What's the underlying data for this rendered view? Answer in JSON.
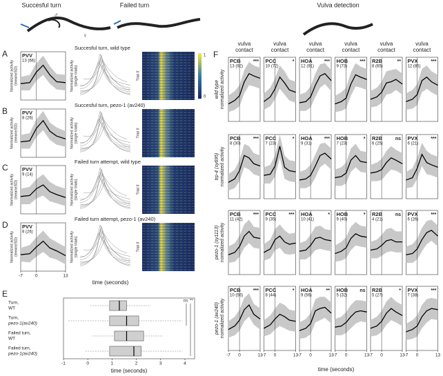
{
  "labels": {
    "header_left1": "Succesful turn",
    "header_left2": "Failed turn",
    "header_right": "Vulva detection",
    "male": "♂",
    "female": "♀",
    "letters": [
      "A",
      "B",
      "C",
      "D",
      "E",
      "F"
    ],
    "row_titles": [
      "Succesful turn, wild type",
      "Succesful turn, pezo-1 (av240)",
      "Failed turn attempt, wild type",
      "Failed turn attempt, pezo-1 (av240)"
    ],
    "ylabel_mean": [
      "Normalized activity",
      "(mean±SD)"
    ],
    "ylabel_single": [
      "Normalized activity",
      "(single trials)"
    ],
    "trial": "Trial #",
    "heat_label": "Normalized activity",
    "colorbar_ticks": [
      1,
      0
    ],
    "time": "time (seconds)",
    "vulva_contact": [
      "vulva",
      "contact"
    ],
    "row_labels": [
      [
        "wild type",
        "normalized activity"
      ],
      [
        "trp-4 (sy695)",
        "normalized activity"
      ],
      [
        "pezo-1 (sy1113)",
        "normalized activity"
      ],
      [
        "pezo-1 (av240)",
        "normalized activity"
      ]
    ]
  },
  "chart_data": [
    {
      "type": "line",
      "neuron": "PVV",
      "n": "13 (66)",
      "x": [
        -7,
        -3,
        0,
        3,
        6,
        9,
        13
      ],
      "values": [
        -0.3,
        -0.2,
        0.9,
        1.6,
        0.6,
        -0.1,
        -0.2
      ],
      "sd": [
        0.7,
        0.8,
        0.9,
        1.0,
        0.9,
        0.8,
        0.8
      ],
      "xlim": [
        -7,
        13
      ],
      "ylim": [
        -2,
        3
      ],
      "vline": 0
    },
    {
      "type": "line",
      "neuron": "PVV",
      "n": "8 (26)",
      "x": [
        -7,
        -3,
        0,
        3,
        6,
        9,
        13
      ],
      "values": [
        -0.4,
        -0.3,
        1.0,
        1.8,
        0.7,
        0.2,
        -0.1
      ],
      "sd": [
        0.7,
        0.8,
        0.9,
        1.0,
        0.9,
        0.9,
        0.8
      ],
      "xlim": [
        -7,
        13
      ],
      "ylim": [
        -2,
        3
      ],
      "vline": 0
    },
    {
      "type": "line",
      "neuron": "PVV",
      "n": "9 (14)",
      "x": [
        -7,
        -3,
        0,
        3,
        6,
        9,
        13
      ],
      "values": [
        -0.2,
        -0.1,
        0.6,
        1.0,
        0.3,
        0.0,
        -0.3
      ],
      "sd": [
        0.8,
        0.9,
        1.0,
        1.1,
        1.0,
        0.9,
        0.9
      ],
      "xlim": [
        -7,
        13
      ],
      "ylim": [
        -2,
        3
      ],
      "vline": 0
    },
    {
      "type": "line",
      "neuron": "PVV",
      "n": "8 (26)",
      "x": [
        -7,
        -3,
        0,
        3,
        6,
        9,
        13
      ],
      "values": [
        -0.3,
        -0.2,
        0.5,
        1.1,
        0.4,
        0.1,
        -0.4
      ],
      "sd": [
        0.7,
        0.9,
        1.0,
        1.1,
        1.0,
        0.9,
        0.9
      ],
      "xlim": [
        -7,
        13
      ],
      "ylim": [
        -2,
        3
      ],
      "vline": 0,
      "xticks": [
        -7,
        0,
        13
      ]
    },
    {
      "type": "line",
      "neuron": "PCB",
      "n": "13 (92)",
      "sig": "***",
      "x": [
        -7,
        -3,
        0,
        3,
        6,
        9,
        13
      ],
      "values": [
        -1.0,
        -0.7,
        -0.3,
        0.9,
        1.6,
        1.4,
        1.2
      ],
      "sd": [
        0.7,
        0.8,
        0.9,
        1.0,
        1.0,
        0.9,
        0.9
      ],
      "xlim": [
        -7,
        13
      ],
      "ylim": [
        -2.5,
        3
      ],
      "vline": 0
    },
    {
      "type": "line",
      "neuron": "PCC",
      "n": "10 (72)",
      "sig": "*",
      "x": [
        -7,
        -3,
        0,
        3,
        6,
        9,
        13
      ],
      "values": [
        -0.8,
        -0.4,
        0.3,
        1.3,
        0.8,
        0.2,
        0.0
      ],
      "sd": [
        0.7,
        0.8,
        0.9,
        1.0,
        1.0,
        0.9,
        0.9
      ],
      "xlim": [
        -7,
        13
      ],
      "ylim": [
        -2.5,
        3
      ],
      "vline": 0
    },
    {
      "type": "line",
      "neuron": "HOA",
      "n": "12 (91)",
      "sig": "***",
      "x": [
        -7,
        -3,
        0,
        3,
        6,
        9,
        13
      ],
      "values": [
        -0.9,
        -0.8,
        -0.4,
        0.6,
        1.4,
        1.6,
        1.0
      ],
      "sd": [
        0.7,
        0.8,
        0.9,
        1.0,
        1.0,
        0.9,
        0.9
      ],
      "xlim": [
        -7,
        13
      ],
      "ylim": [
        -2.5,
        3
      ],
      "vline": 0
    },
    {
      "type": "line",
      "neuron": "HOB",
      "n": "9 (73)",
      "sig": "***",
      "x": [
        -7,
        -3,
        0,
        3,
        6,
        9,
        13
      ],
      "values": [
        -1.0,
        -0.8,
        -0.5,
        0.7,
        1.5,
        1.3,
        1.1
      ],
      "sd": [
        0.7,
        0.8,
        0.9,
        1.0,
        1.0,
        0.9,
        0.9
      ],
      "xlim": [
        -7,
        13
      ],
      "ylim": [
        -2.5,
        3
      ],
      "vline": 0
    },
    {
      "type": "line",
      "neuron": "R2B",
      "n": "8 (65)",
      "sig": "**",
      "x": [
        -7,
        -3,
        0,
        3,
        6,
        9,
        13
      ],
      "values": [
        -0.6,
        -0.4,
        0.0,
        0.8,
        0.9,
        1.1,
        0.7
      ],
      "sd": [
        0.7,
        0.8,
        0.9,
        1.0,
        1.0,
        0.9,
        0.9
      ],
      "xlim": [
        -7,
        13
      ],
      "ylim": [
        -2.5,
        3
      ],
      "vline": 0
    },
    {
      "type": "line",
      "neuron": "PVX",
      "n": "12 (85)",
      "sig": "***",
      "x": [
        -7,
        -3,
        0,
        3,
        6,
        9,
        13
      ],
      "values": [
        -0.8,
        -0.6,
        -0.2,
        1.0,
        1.3,
        0.9,
        0.6
      ],
      "sd": [
        0.7,
        0.8,
        0.9,
        1.0,
        1.0,
        0.9,
        0.9
      ],
      "xlim": [
        -7,
        13
      ],
      "ylim": [
        -2.5,
        3
      ],
      "vline": 0
    },
    {
      "type": "line",
      "neuron": "PCB",
      "n": "8 (30)",
      "sig": "***",
      "x": [
        -7,
        -3,
        0,
        3,
        6,
        9,
        13
      ],
      "values": [
        -1.1,
        -0.8,
        -0.1,
        1.2,
        1.0,
        0.5,
        0.3
      ],
      "sd": [
        0.7,
        0.8,
        0.9,
        1.0,
        1.0,
        0.9,
        0.9
      ],
      "xlim": [
        -7,
        13
      ],
      "ylim": [
        -2.5,
        3
      ],
      "vline": 0
    },
    {
      "type": "line",
      "neuron": "PCC",
      "n": "7 (23)",
      "sig": "*",
      "x": [
        -7,
        -3,
        0,
        3,
        6,
        9,
        13
      ],
      "values": [
        -0.5,
        -0.4,
        0.3,
        2.0,
        0.2,
        -0.1,
        -0.2
      ],
      "sd": [
        0.7,
        0.8,
        0.9,
        1.0,
        1.0,
        0.9,
        0.9
      ],
      "xlim": [
        -7,
        13
      ],
      "ylim": [
        -2.5,
        3
      ],
      "vline": 0
    },
    {
      "type": "line",
      "neuron": "HOA",
      "n": "9 (31)",
      "sig": "***",
      "x": [
        -7,
        -3,
        0,
        3,
        6,
        9,
        13
      ],
      "values": [
        -0.9,
        -0.8,
        -0.5,
        0.3,
        1.2,
        1.4,
        0.9
      ],
      "sd": [
        0.7,
        0.8,
        0.9,
        1.0,
        1.0,
        0.9,
        0.9
      ],
      "xlim": [
        -7,
        13
      ],
      "ylim": [
        -2.5,
        3
      ],
      "vline": 0
    },
    {
      "type": "line",
      "neuron": "HOB",
      "n": "7 (23)",
      "sig": "*",
      "x": [
        -7,
        -3,
        0,
        3,
        6,
        9,
        13
      ],
      "values": [
        -0.7,
        -0.6,
        -0.3,
        0.8,
        1.2,
        0.7,
        0.6
      ],
      "sd": [
        0.7,
        0.8,
        0.9,
        1.0,
        1.0,
        0.9,
        0.9
      ],
      "xlim": [
        -7,
        13
      ],
      "ylim": [
        -2.5,
        3
      ],
      "vline": 0
    },
    {
      "type": "line",
      "neuron": "R2B",
      "n": "6 (25)",
      "sig": "ns",
      "x": [
        -7,
        -3,
        0,
        3,
        6,
        9,
        13
      ],
      "values": [
        -0.3,
        -0.2,
        0.0,
        0.6,
        1.0,
        0.8,
        0.5
      ],
      "sd": [
        0.7,
        0.8,
        0.9,
        1.0,
        1.0,
        0.9,
        0.9
      ],
      "xlim": [
        -7,
        13
      ],
      "ylim": [
        -2.5,
        3
      ],
      "vline": 0
    },
    {
      "type": "line",
      "neuron": "PVX",
      "n": "6 (21)",
      "sig": "***",
      "x": [
        -7,
        -3,
        0,
        3,
        6,
        9,
        13
      ],
      "values": [
        -0.9,
        -0.7,
        0.1,
        1.3,
        0.6,
        0.4,
        0.2
      ],
      "sd": [
        0.7,
        0.8,
        0.9,
        1.0,
        1.0,
        0.9,
        0.9
      ],
      "xlim": [
        -7,
        13
      ],
      "ylim": [
        -2.5,
        3
      ],
      "vline": 0
    },
    {
      "type": "line",
      "neuron": "PCB",
      "n": "11 (42)",
      "sig": "***",
      "x": [
        -7,
        -3,
        0,
        3,
        6,
        9,
        13
      ],
      "values": [
        -0.8,
        -0.6,
        -0.1,
        0.8,
        1.2,
        0.7,
        0.6
      ],
      "sd": [
        0.7,
        0.8,
        0.9,
        1.0,
        1.0,
        0.9,
        0.9
      ],
      "xlim": [
        -7,
        13
      ],
      "ylim": [
        -2.5,
        3
      ],
      "vline": 0
    },
    {
      "type": "line",
      "neuron": "PCC",
      "n": "9 (35)",
      "sig": "***",
      "x": [
        -7,
        -3,
        0,
        3,
        6,
        9,
        13
      ],
      "values": [
        -0.6,
        -0.3,
        0.5,
        0.8,
        0.3,
        0.1,
        0.2
      ],
      "sd": [
        0.7,
        0.8,
        0.9,
        1.0,
        1.0,
        0.9,
        0.9
      ],
      "xlim": [
        -7,
        13
      ],
      "ylim": [
        -2.5,
        3
      ],
      "vline": 0
    },
    {
      "type": "line",
      "neuron": "HOA",
      "n": "10 (41)",
      "sig": "*",
      "x": [
        -7,
        -3,
        0,
        3,
        6,
        9,
        13
      ],
      "values": [
        -0.5,
        -0.4,
        0.0,
        0.6,
        0.7,
        0.5,
        0.4
      ],
      "sd": [
        0.7,
        0.8,
        0.9,
        1.0,
        1.0,
        0.9,
        0.9
      ],
      "xlim": [
        -7,
        13
      ],
      "ylim": [
        -2.5,
        3
      ],
      "vline": 0
    },
    {
      "type": "line",
      "neuron": "HOB",
      "n": "9 (40)",
      "sig": "*",
      "x": [
        -7,
        -3,
        0,
        3,
        6,
        9,
        13
      ],
      "values": [
        -0.7,
        -0.5,
        -0.2,
        0.6,
        1.0,
        0.8,
        0.7
      ],
      "sd": [
        0.7,
        0.8,
        0.9,
        1.0,
        1.0,
        0.9,
        0.9
      ],
      "xlim": [
        -7,
        13
      ],
      "ylim": [
        -2.5,
        3
      ],
      "vline": 0
    },
    {
      "type": "line",
      "neuron": "R2B",
      "n": "4 (21)",
      "sig": "ns",
      "x": [
        -7,
        -3,
        0,
        3,
        6,
        9,
        13
      ],
      "values": [
        -0.4,
        -0.3,
        0.0,
        0.4,
        0.5,
        0.3,
        0.3
      ],
      "sd": [
        0.7,
        0.8,
        0.9,
        1.0,
        1.0,
        0.9,
        0.9
      ],
      "xlim": [
        -7,
        13
      ],
      "ylim": [
        -2.5,
        3
      ],
      "vline": 0
    },
    {
      "type": "line",
      "neuron": "PVX",
      "n": "6 (26)",
      "sig": "***",
      "x": [
        -7,
        -3,
        0,
        3,
        6,
        9,
        13
      ],
      "values": [
        -0.8,
        -0.7,
        -0.3,
        0.5,
        1.1,
        1.3,
        0.8
      ],
      "sd": [
        0.7,
        0.8,
        0.9,
        1.0,
        1.0,
        0.9,
        0.9
      ],
      "xlim": [
        -7,
        13
      ],
      "ylim": [
        -2.5,
        3
      ],
      "vline": 0
    },
    {
      "type": "line",
      "neuron": "PCB",
      "n": "10 (56)",
      "sig": "***",
      "x": [
        -7,
        -3,
        0,
        3,
        6,
        9,
        13
      ],
      "values": [
        -0.7,
        -0.4,
        0.1,
        1.0,
        1.4,
        0.6,
        0.2
      ],
      "sd": [
        0.7,
        0.8,
        0.9,
        1.0,
        1.0,
        0.9,
        0.9
      ],
      "xlim": [
        -7,
        13
      ],
      "ylim": [
        -2.5,
        3
      ],
      "vline": 0,
      "xticks": [
        -7,
        0,
        13
      ]
    },
    {
      "type": "line",
      "neuron": "PCC",
      "n": "8 (44)",
      "sig": "*",
      "x": [
        -7,
        -3,
        0,
        3,
        6,
        9,
        13
      ],
      "values": [
        -0.6,
        -0.3,
        0.2,
        0.6,
        0.4,
        0.1,
        0.0
      ],
      "sd": [
        0.7,
        0.8,
        0.9,
        1.0,
        1.0,
        0.9,
        0.9
      ],
      "xlim": [
        -7,
        13
      ],
      "ylim": [
        -2.5,
        3
      ],
      "vline": 0,
      "xticks": [
        -7,
        0,
        13
      ]
    },
    {
      "type": "line",
      "neuron": "HOA",
      "n": "9 (56)",
      "sig": "**",
      "x": [
        -7,
        -3,
        0,
        3,
        6,
        9,
        13
      ],
      "values": [
        -0.8,
        -0.6,
        -0.2,
        0.9,
        1.1,
        1.2,
        0.7
      ],
      "sd": [
        0.7,
        0.8,
        0.9,
        1.0,
        1.0,
        0.9,
        0.9
      ],
      "xlim": [
        -7,
        13
      ],
      "ylim": [
        -2.5,
        3
      ],
      "vline": 0,
      "xticks": [
        -7,
        0,
        13
      ]
    },
    {
      "type": "line",
      "neuron": "HOB",
      "n": "5 (32)",
      "sig": "ns",
      "x": [
        -7,
        -3,
        0,
        3,
        6,
        9,
        13
      ],
      "values": [
        -0.5,
        -0.4,
        -0.1,
        0.4,
        0.8,
        0.9,
        0.8
      ],
      "sd": [
        0.7,
        0.8,
        0.9,
        1.0,
        1.0,
        0.9,
        0.9
      ],
      "xlim": [
        -7,
        13
      ],
      "ylim": [
        -2.5,
        3
      ],
      "vline": 0,
      "xticks": [
        -7,
        0,
        13
      ]
    },
    {
      "type": "line",
      "neuron": "R2B",
      "n": "5 (27)",
      "sig": "*",
      "x": [
        -7,
        -3,
        0,
        3,
        6,
        9,
        13
      ],
      "values": [
        -0.6,
        -0.4,
        0.0,
        0.7,
        1.1,
        0.8,
        0.5
      ],
      "sd": [
        0.7,
        0.8,
        0.9,
        1.0,
        1.0,
        0.9,
        0.9
      ],
      "xlim": [
        -7,
        13
      ],
      "ylim": [
        -2.5,
        3
      ],
      "vline": 0,
      "xticks": [
        -7,
        0,
        13
      ]
    },
    {
      "type": "line",
      "neuron": "PVX",
      "n": "7 (38)",
      "sig": "***",
      "x": [
        -7,
        -3,
        0,
        3,
        6,
        9,
        13
      ],
      "values": [
        -0.9,
        -0.7,
        -0.4,
        0.4,
        0.9,
        1.1,
        1.0
      ],
      "sd": [
        0.7,
        0.8,
        0.9,
        1.0,
        1.0,
        0.9,
        0.9
      ],
      "xlim": [
        -7,
        13
      ],
      "ylim": [
        -2.5,
        3
      ],
      "vline": 0,
      "xticks": [
        -7,
        0,
        13
      ]
    },
    {
      "type": "box",
      "categories": [
        [
          "Turn,",
          "WT"
        ],
        [
          "Turn,",
          "pezo-1(av240)"
        ],
        [
          "Failed turn,",
          "WT"
        ],
        [
          "Failed turn,",
          "pezo-1(av240)"
        ]
      ],
      "whisker_low": [
        0.1,
        -0.8,
        0.2,
        -0.1
      ],
      "q1": [
        0.9,
        0.9,
        1.1,
        0.9
      ],
      "median": [
        1.3,
        1.6,
        1.6,
        1.9
      ],
      "q3": [
        1.6,
        2.1,
        2.3,
        2.2
      ],
      "whisker_high": [
        2.6,
        3.9,
        3.1,
        3.9
      ],
      "xlim": [
        -1,
        4.4
      ],
      "xticks": [
        -1,
        0,
        1,
        2,
        3,
        4
      ],
      "annotations": [
        "ns",
        "**"
      ]
    }
  ]
}
